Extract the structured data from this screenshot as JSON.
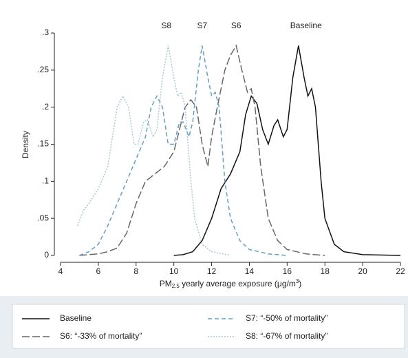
{
  "chart_data": {
    "type": "line",
    "y_label": "Density",
    "x_label": "PM",
    "x_label_sub": "2.5",
    "x_label_rest": " yearly average exposure (μg/m",
    "x_label_sup": "3",
    "x_label_end": ")",
    "xlim": [
      4,
      22
    ],
    "xticks": [
      4,
      6,
      8,
      10,
      12,
      14,
      16,
      18,
      20,
      22
    ],
    "ylim": [
      0,
      0.3
    ],
    "yticks": [
      0,
      {
        "value": 0.05,
        "label": ".05"
      },
      {
        "value": 0.1,
        "label": ".1"
      },
      {
        "value": 0.15,
        "label": ".15"
      },
      {
        "value": 0.2,
        "label": ".2"
      },
      {
        "value": 0.25,
        "label": ".25"
      },
      {
        "value": 0.3,
        "label": ".3"
      }
    ],
    "grid": false,
    "annotations": [
      {
        "text": "S8",
        "x": 9.6
      },
      {
        "text": "S7",
        "x": 11.5
      },
      {
        "text": "S6",
        "x": 13.3
      },
      {
        "text": "Baseline",
        "x": 17
      }
    ],
    "series": [
      {
        "name": "Baseline",
        "color": "#111111",
        "line_style": "solid",
        "x": [
          10,
          10.5,
          11,
          11.5,
          12,
          12.5,
          13,
          13.5,
          13.8,
          14.1,
          14.4,
          14.7,
          15,
          15.3,
          15.5,
          15.8,
          16,
          16.3,
          16.6,
          16.9,
          17.1,
          17.3,
          17.5,
          17.8,
          18,
          18.5,
          19,
          20,
          22
        ],
        "values": [
          0,
          0.001,
          0.005,
          0.02,
          0.05,
          0.09,
          0.11,
          0.14,
          0.19,
          0.215,
          0.205,
          0.17,
          0.15,
          0.175,
          0.183,
          0.16,
          0.17,
          0.24,
          0.283,
          0.24,
          0.215,
          0.225,
          0.2,
          0.1,
          0.05,
          0.015,
          0.005,
          0.001,
          0
        ]
      },
      {
        "name": "S6: “-33% of mortality”",
        "color": "#666666",
        "line_style": "longdash",
        "x": [
          5,
          6,
          6.5,
          7,
          7.5,
          8,
          8.5,
          9,
          9.5,
          10,
          10.3,
          10.6,
          10.9,
          11.2,
          11.5,
          11.8,
          12,
          12.3,
          12.7,
          13,
          13.3,
          13.6,
          13.9,
          14.1,
          14.3,
          14.6,
          15,
          15.5,
          16,
          17,
          18
        ],
        "values": [
          0,
          0.002,
          0.005,
          0.01,
          0.03,
          0.07,
          0.1,
          0.11,
          0.12,
          0.14,
          0.17,
          0.2,
          0.21,
          0.2,
          0.15,
          0.12,
          0.16,
          0.2,
          0.25,
          0.27,
          0.283,
          0.25,
          0.22,
          0.225,
          0.2,
          0.12,
          0.05,
          0.02,
          0.008,
          0.002,
          0
        ]
      },
      {
        "name": "S7: “-50% of mortality”",
        "color": "#5f9fc2",
        "line_style": "dash",
        "x": [
          5,
          5.5,
          6,
          6.5,
          7,
          7.5,
          8,
          8.5,
          8.8,
          9.1,
          9.4,
          9.7,
          10,
          10.3,
          10.5,
          10.8,
          11,
          11.3,
          11.5,
          11.8,
          12,
          12.2,
          12.4,
          12.7,
          13,
          13.5,
          14,
          15,
          16
        ],
        "values": [
          0,
          0.005,
          0.015,
          0.04,
          0.07,
          0.1,
          0.13,
          0.16,
          0.2,
          0.215,
          0.2,
          0.15,
          0.15,
          0.18,
          0.18,
          0.16,
          0.18,
          0.25,
          0.283,
          0.24,
          0.215,
          0.22,
          0.2,
          0.1,
          0.05,
          0.02,
          0.008,
          0.002,
          0
        ]
      },
      {
        "name": "S8: “-67% of mortality”",
        "color": "#a9c8d6",
        "line_style": "dot",
        "x": [
          4.9,
          5.2,
          5.5,
          6,
          6.5,
          7,
          7.3,
          7.6,
          7.9,
          8.1,
          8.4,
          8.6,
          8.9,
          9.1,
          9.4,
          9.7,
          10,
          10.2,
          10.4,
          10.6,
          10.9,
          11.1,
          11.5,
          12,
          13
        ],
        "values": [
          0.04,
          0.06,
          0.07,
          0.09,
          0.12,
          0.2,
          0.215,
          0.2,
          0.15,
          0.15,
          0.18,
          0.183,
          0.16,
          0.17,
          0.24,
          0.283,
          0.24,
          0.215,
          0.22,
          0.2,
          0.1,
          0.05,
          0.015,
          0.005,
          0
        ]
      }
    ]
  }
}
